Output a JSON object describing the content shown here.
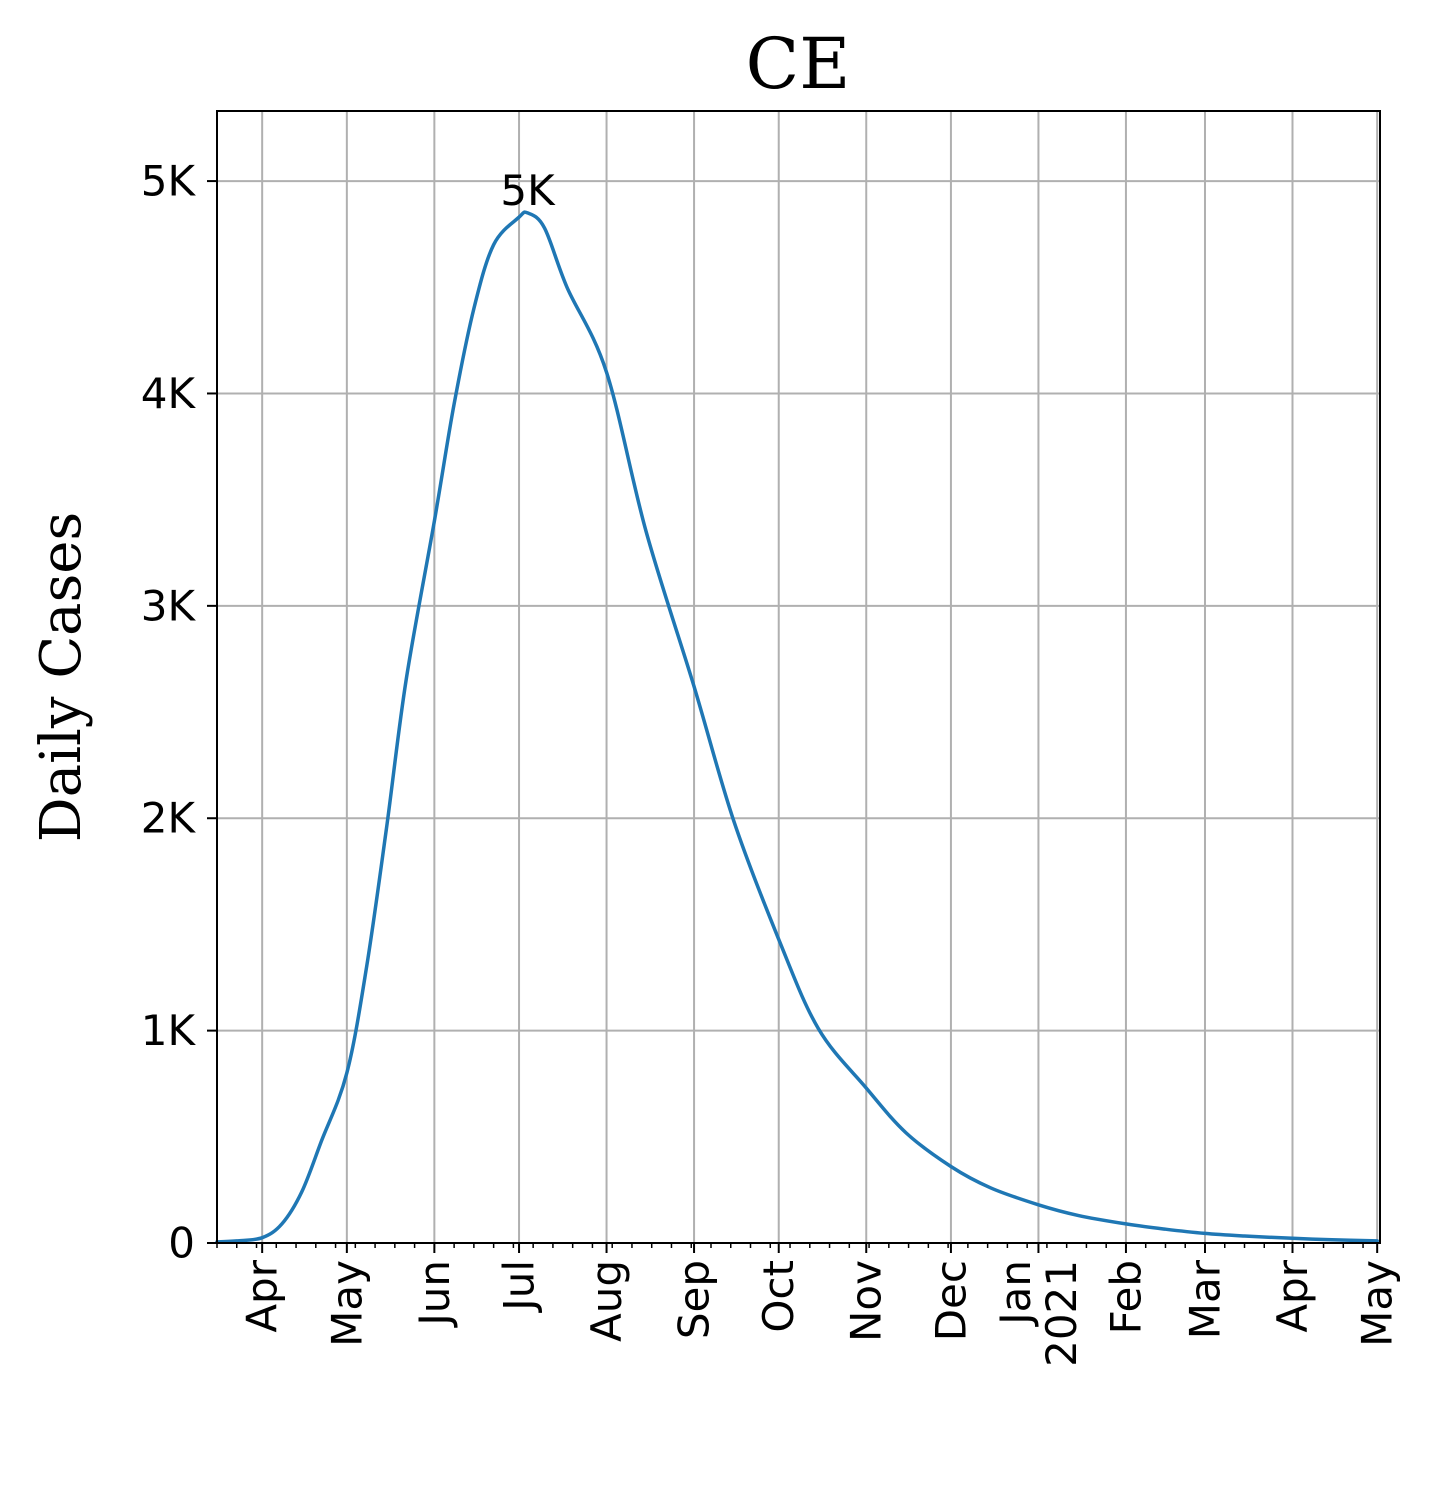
{
  "chart_data": {
    "type": "line",
    "title": "CE",
    "xlabel": "",
    "ylabel": "Daily Cases",
    "xlim": [
      "2020-03-16",
      "2021-05-02"
    ],
    "ylim": [
      0,
      5330
    ],
    "x_ticks": [
      {
        "date": "2020-04-01",
        "label": "Apr"
      },
      {
        "date": "2020-05-01",
        "label": "May"
      },
      {
        "date": "2020-06-01",
        "label": "Jun"
      },
      {
        "date": "2020-07-01",
        "label": "Jul"
      },
      {
        "date": "2020-08-01",
        "label": "Aug"
      },
      {
        "date": "2020-09-01",
        "label": "Sep"
      },
      {
        "date": "2020-10-01",
        "label": "Oct"
      },
      {
        "date": "2020-11-01",
        "label": "Nov"
      },
      {
        "date": "2020-12-01",
        "label": "Dec"
      },
      {
        "date": "2021-01-01",
        "label": "Jan\n2021"
      },
      {
        "date": "2021-02-01",
        "label": "Feb"
      },
      {
        "date": "2021-03-01",
        "label": "Mar"
      },
      {
        "date": "2021-04-01",
        "label": "Apr"
      },
      {
        "date": "2021-05-01",
        "label": "May"
      }
    ],
    "y_ticks": [
      {
        "value": 0,
        "label": "0"
      },
      {
        "value": 1000,
        "label": "1K"
      },
      {
        "value": 2000,
        "label": "2K"
      },
      {
        "value": 3000,
        "label": "3K"
      },
      {
        "value": 4000,
        "label": "4K"
      },
      {
        "value": 5000,
        "label": "5K"
      }
    ],
    "grid": true,
    "annotations": [
      {
        "text": "5K",
        "date": "2020-07-04",
        "value": 4850
      }
    ],
    "series": [
      {
        "color": "#1f77b4",
        "points": [
          [
            "2020-03-16",
            5
          ],
          [
            "2020-03-23",
            10
          ],
          [
            "2020-04-01",
            25
          ],
          [
            "2020-04-08",
            90
          ],
          [
            "2020-04-15",
            240
          ],
          [
            "2020-04-22",
            480
          ],
          [
            "2020-05-01",
            800
          ],
          [
            "2020-05-08",
            1300
          ],
          [
            "2020-05-15",
            1950
          ],
          [
            "2020-05-22",
            2650
          ],
          [
            "2020-06-01",
            3400
          ],
          [
            "2020-06-08",
            3950
          ],
          [
            "2020-06-15",
            4400
          ],
          [
            "2020-06-22",
            4700
          ],
          [
            "2020-07-01",
            4830
          ],
          [
            "2020-07-04",
            4850
          ],
          [
            "2020-07-10",
            4780
          ],
          [
            "2020-07-18",
            4500
          ],
          [
            "2020-08-01",
            4100
          ],
          [
            "2020-08-15",
            3350
          ],
          [
            "2020-09-01",
            2620
          ],
          [
            "2020-09-15",
            1990
          ],
          [
            "2020-10-01",
            1430
          ],
          [
            "2020-10-15",
            1010
          ],
          [
            "2020-11-01",
            730
          ],
          [
            "2020-11-15",
            520
          ],
          [
            "2020-12-01",
            360
          ],
          [
            "2020-12-15",
            260
          ],
          [
            "2021-01-01",
            180
          ],
          [
            "2021-01-15",
            130
          ],
          [
            "2021-02-01",
            90
          ],
          [
            "2021-02-15",
            65
          ],
          [
            "2021-03-01",
            45
          ],
          [
            "2021-03-15",
            33
          ],
          [
            "2021-04-01",
            22
          ],
          [
            "2021-04-15",
            15
          ],
          [
            "2021-05-01",
            10
          ]
        ]
      }
    ]
  }
}
